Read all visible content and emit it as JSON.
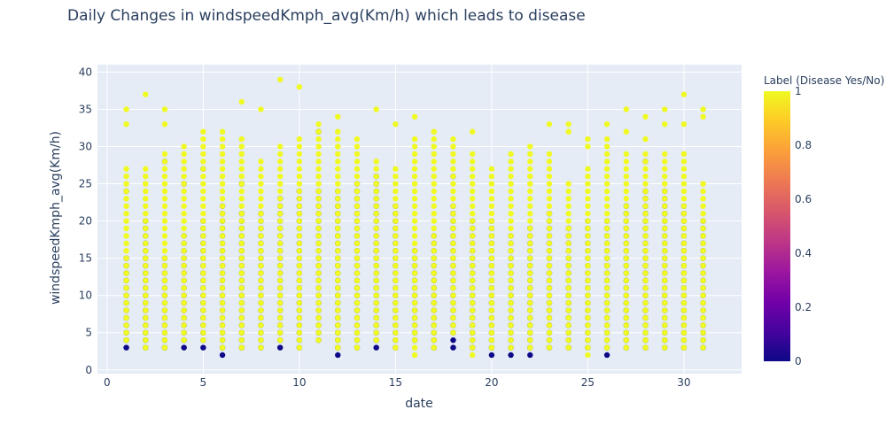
{
  "chart_data": {
    "type": "scatter",
    "title": "Daily Changes in windspeedKmph_avg(Km/h) which leads to disease",
    "xlabel": "date",
    "ylabel": "windspeedKmph_avg(Km/h)",
    "xlim": [
      -0.5,
      33
    ],
    "ylim": [
      -0.5,
      41
    ],
    "x_ticks": [
      0,
      5,
      10,
      15,
      20,
      25,
      30
    ],
    "y_ticks": [
      0,
      5,
      10,
      15,
      20,
      25,
      30,
      35,
      40
    ],
    "grid": true,
    "colorbar": {
      "title": "Label (Disease Yes/No)",
      "ticks": [
        0,
        0.2,
        0.4,
        0.6,
        0.8,
        1
      ],
      "tick_labels": [
        "0",
        "0.2",
        "0.4",
        "0.6",
        "0.8",
        "1"
      ],
      "colorscale": [
        "#0d0887",
        "#46039f",
        "#7201a8",
        "#9c179e",
        "#bd3786",
        "#d8576b",
        "#ed7953",
        "#fb9f3a",
        "#fdca26",
        "#f0f921"
      ]
    },
    "colors": {
      "label_0": "#0d0887",
      "label_1": "#f0f921",
      "plot_bg": "#e5ecf6"
    },
    "label0_ranges": [
      [
        1,
        3,
        15
      ],
      [
        1,
        24,
        24
      ],
      [
        2,
        3,
        20
      ],
      [
        3,
        3,
        15
      ],
      [
        3,
        28,
        28
      ],
      [
        4,
        3,
        18
      ],
      [
        4,
        25,
        25
      ],
      [
        5,
        3,
        20
      ],
      [
        5,
        27,
        27
      ],
      [
        6,
        2,
        22
      ],
      [
        7,
        3,
        21
      ],
      [
        7,
        25,
        25
      ],
      [
        8,
        3,
        21
      ],
      [
        9,
        3,
        23
      ],
      [
        10,
        3,
        24
      ],
      [
        11,
        4,
        24
      ],
      [
        11,
        32,
        32
      ],
      [
        12,
        2,
        24
      ],
      [
        13,
        3,
        25
      ],
      [
        14,
        3,
        26
      ],
      [
        15,
        3,
        22
      ],
      [
        16,
        4,
        16
      ],
      [
        17,
        3,
        18
      ],
      [
        18,
        3,
        22
      ],
      [
        18,
        26,
        26
      ],
      [
        19,
        3,
        20
      ],
      [
        20,
        2,
        20
      ],
      [
        21,
        2,
        18
      ],
      [
        22,
        2,
        19
      ],
      [
        23,
        3,
        21
      ],
      [
        24,
        3,
        19
      ],
      [
        25,
        3,
        20
      ],
      [
        26,
        2,
        20
      ],
      [
        27,
        3,
        22
      ],
      [
        28,
        3,
        24
      ],
      [
        28,
        28,
        28
      ],
      [
        29,
        3,
        24
      ],
      [
        30,
        3,
        22
      ],
      [
        31,
        3,
        20
      ]
    ],
    "label1_ranges": [
      [
        1,
        4,
        27
      ],
      [
        1,
        33,
        33
      ],
      [
        1,
        35,
        35
      ],
      [
        2,
        3,
        27
      ],
      [
        2,
        37,
        37
      ],
      [
        3,
        3,
        29
      ],
      [
        3,
        33,
        33
      ],
      [
        3,
        35,
        35
      ],
      [
        4,
        4,
        30
      ],
      [
        5,
        4,
        32
      ],
      [
        6,
        3,
        32
      ],
      [
        7,
        3,
        31
      ],
      [
        7,
        36,
        36
      ],
      [
        8,
        3,
        28
      ],
      [
        8,
        35,
        35
      ],
      [
        9,
        4,
        30
      ],
      [
        9,
        39,
        39
      ],
      [
        10,
        3,
        31
      ],
      [
        10,
        38,
        38
      ],
      [
        11,
        4,
        33
      ],
      [
        12,
        3,
        32
      ],
      [
        12,
        34,
        34
      ],
      [
        13,
        3,
        31
      ],
      [
        14,
        4,
        28
      ],
      [
        14,
        35,
        35
      ],
      [
        15,
        3,
        27
      ],
      [
        15,
        33,
        33
      ],
      [
        16,
        2,
        31
      ],
      [
        16,
        34,
        34
      ],
      [
        17,
        3,
        32
      ],
      [
        18,
        5,
        31
      ],
      [
        19,
        2,
        29
      ],
      [
        19,
        32,
        32
      ],
      [
        20,
        3,
        27
      ],
      [
        21,
        3,
        29
      ],
      [
        22,
        3,
        30
      ],
      [
        23,
        3,
        29
      ],
      [
        23,
        33,
        33
      ],
      [
        24,
        3,
        25
      ],
      [
        24,
        32,
        33
      ],
      [
        25,
        2,
        27
      ],
      [
        25,
        30,
        31
      ],
      [
        26,
        3,
        31
      ],
      [
        26,
        33,
        33
      ],
      [
        27,
        3,
        29
      ],
      [
        27,
        32,
        32
      ],
      [
        27,
        35,
        35
      ],
      [
        28,
        3,
        29
      ],
      [
        28,
        31,
        31
      ],
      [
        28,
        34,
        34
      ],
      [
        29,
        3,
        29
      ],
      [
        29,
        33,
        33
      ],
      [
        29,
        35,
        35
      ],
      [
        30,
        3,
        29
      ],
      [
        30,
        33,
        33
      ],
      [
        30,
        37,
        37
      ],
      [
        31,
        3,
        25
      ],
      [
        31,
        34,
        35
      ]
    ]
  }
}
